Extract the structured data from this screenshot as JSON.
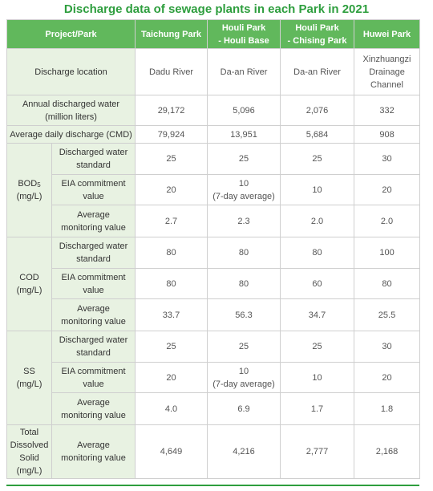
{
  "title": "Discharge data of sewage plants in each Park in 2021",
  "columns": {
    "project": "Project/Park",
    "taichung": "Taichung Park",
    "houli_base_l1": "Houli Park",
    "houli_base_l2": "- Houli Base",
    "houli_chising_l1": "Houli Park",
    "houli_chising_l2": "- Chising Park",
    "huwei": "Huwei Park"
  },
  "rows": {
    "location": {
      "label": "Discharge location",
      "taichung": "Dadu River",
      "houli_base": "Da-an River",
      "houli_chising": "Da-an River",
      "huwei_l1": "Xinzhuangzi",
      "huwei_l2": "Drainage",
      "huwei_l3": "Channel"
    },
    "annual": {
      "label_l1": "Annual discharged water",
      "label_l2": "(million liters)",
      "taichung": "29,172",
      "houli_base": "5,096",
      "houli_chising": "2,076",
      "huwei": "332"
    },
    "daily": {
      "label": "Average daily discharge (CMD)",
      "taichung": "79,924",
      "houli_base": "13,951",
      "houli_chising": "5,684",
      "huwei": "908"
    }
  },
  "sub_labels": {
    "standard_l1": "Discharged water",
    "standard_l2": "standard",
    "eia_l1": "EIA commitment",
    "eia_l2": "value",
    "avg_l1": "Average",
    "avg_l2": "monitoring value",
    "seven_day": "(7-day average)"
  },
  "bod": {
    "name": "BOD",
    "sub": "5",
    "unit": "(mg/L)",
    "standard": [
      "25",
      "25",
      "25",
      "30"
    ],
    "eia": [
      "20",
      "10",
      "10",
      "20"
    ],
    "avg": [
      "2.7",
      "2.3",
      "2.0",
      "2.0"
    ]
  },
  "cod": {
    "name": "COD",
    "unit": "(mg/L)",
    "standard": [
      "80",
      "80",
      "80",
      "100"
    ],
    "eia": [
      "80",
      "80",
      "60",
      "80"
    ],
    "avg": [
      "33.7",
      "56.3",
      "34.7",
      "25.5"
    ]
  },
  "ss": {
    "name": "SS",
    "unit": "(mg/L)",
    "standard": [
      "25",
      "25",
      "25",
      "30"
    ],
    "eia": [
      "20",
      "10",
      "10",
      "20"
    ],
    "avg": [
      "4.0",
      "6.9",
      "1.7",
      "1.8"
    ]
  },
  "tds": {
    "name_l1": "Total",
    "name_l2": "Dissolved",
    "name_l3": "Solid",
    "unit": "(mg/L)",
    "avg": [
      "4,649",
      "4,216",
      "2,777",
      "2,168"
    ]
  }
}
